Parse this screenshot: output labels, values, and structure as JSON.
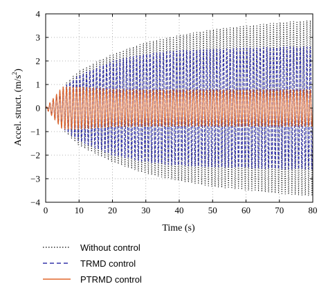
{
  "chart_data": {
    "type": "line",
    "xlabel": "Time (s)",
    "ylabel_main": "Accel. struct. (m/s",
    "ylabel_sup": "2",
    "ylabel_close": ")",
    "xlim": [
      0,
      80
    ],
    "ylim": [
      -4,
      4
    ],
    "xticks": [
      0,
      10,
      20,
      30,
      40,
      50,
      60,
      70,
      80
    ],
    "yticks": [
      -4,
      -3,
      -2,
      -1,
      0,
      1,
      2,
      3,
      4
    ],
    "grid": true,
    "legend_position": "below",
    "series": [
      {
        "name": "Without control",
        "color": "#000000",
        "style": "dotted",
        "frequency_hz": 1.0,
        "envelope_t": [
          0,
          5,
          10,
          20,
          30,
          40,
          50,
          60,
          70,
          80
        ],
        "envelope_amp": [
          0,
          0.9,
          1.6,
          2.3,
          2.8,
          3.1,
          3.35,
          3.5,
          3.65,
          3.75
        ]
      },
      {
        "name": "TRMD control",
        "color": "#3333aa",
        "style": "dashed",
        "frequency_hz": 1.0,
        "envelope_t": [
          0,
          5,
          10,
          20,
          30,
          40,
          50,
          60,
          70,
          80
        ],
        "envelope_amp": [
          0,
          0.85,
          1.4,
          2.0,
          2.3,
          2.45,
          2.5,
          2.55,
          2.6,
          2.6
        ]
      },
      {
        "name": "PTRMD control",
        "color": "#e0662a",
        "style": "solid",
        "frequency_hz": 1.0,
        "envelope_t": [
          0,
          5,
          10,
          20,
          30,
          40,
          50,
          60,
          70,
          80
        ],
        "envelope_amp": [
          0,
          0.9,
          0.9,
          0.8,
          0.78,
          0.78,
          0.78,
          0.78,
          0.78,
          0.78
        ]
      }
    ]
  }
}
